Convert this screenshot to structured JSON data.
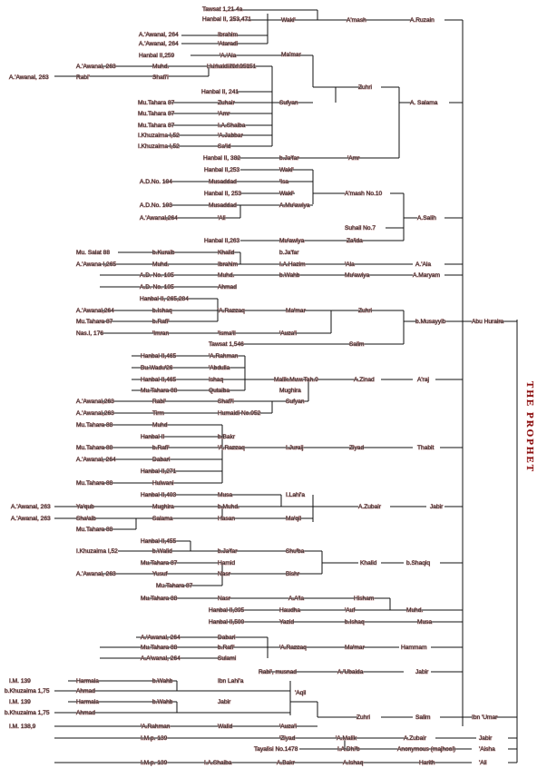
{
  "title": "THE PROPHET",
  "labels": {
    "r1": "Tawsat 1,21 4a",
    "r2": "Hanbal II, 253,471",
    "r3": "A.'Awanal, 264",
    "r4": "A.'Awanal, 264",
    "r5": "Hanbal II,259",
    "r6": "A.'Awanal, 263",
    "r7": "A.'Awanal, 263",
    "r8": "Hanbal II, 241",
    "r9": "Mu.Tahara 87",
    "r10": "Mu.Tahara 87",
    "r11": "Mu.Tahara 87",
    "r12": "I.Khuzaima I,52",
    "r13": "I.Khuzaima I,52",
    "r14": "Hanbal II, 382",
    "r15": "Hanbal II,253",
    "r16": "A.D.No. 104",
    "r17": "Hanbal II, 253",
    "r18": "A.D.No. 103",
    "r19": "A.'Awanal,264",
    "r20": "Hanbal II,263",
    "r21": "Mu. Salat 88",
    "r22": "A.'Awana I,265",
    "r23": "A.D. No. 105",
    "r24": "A.D. No. 105",
    "r25": "Hanbal II, 265,284",
    "r26": "A.'Awanal,264",
    "r27": "Mu.Tahara 87",
    "r28": "Nas.I, 176",
    "r29": "Tawsat 1,546",
    "r30": "Hanbal II,465",
    "r31": "Bu.Wadu'26",
    "r32": "Hanbal II,465",
    "r33": "Mu.Tahara 88",
    "r34": "A.'Awanal,263",
    "r35": "A.'Awanal,263",
    "r36": "Mu.Tahara 88",
    "r37": "Hanbal II",
    "r38": "Mu.Tahara 88",
    "r39": "A.'Awanal, 264",
    "r40": "Hanbal II,271",
    "r41": "Mu.Tahara 88",
    "r42": "Hanbal II,403",
    "r43": "A.'Awanal, 263",
    "r44": "A.'Awanal, 263",
    "r45": "Mu.Tahara 88",
    "r46": "Hanbal II,455",
    "r47": "I.Khuzaima I,52",
    "r48": "Mu.Tahara 87",
    "r49": "A.'Awanal, 263",
    "r50": "Mu.Tahara 87",
    "r51": "Mu.Tahara 88",
    "r52": "Hanbal II,395",
    "r53": "Hanbal II,500",
    "r54": "A.'Awanal, 264",
    "r55": "Mu.Tahara 88",
    "r56": "A.A'wanal, 264",
    "r57": "I.M. 139",
    "r58": "b.Khuzaima 1,75",
    "r59": "I.M. 139",
    "r60": "b.Khuzaima 1,75",
    "r61": "I.M. 138,9",
    "r62": "I.M.p. 139",
    "r63": "Tayalisi No.1478",
    "r64": "I.M.p. 139",
    "c1": "Waki'",
    "c2": "Ibrahim",
    "c3": "'Ataradi",
    "c4": "'A.'Ala",
    "c5": "Muhd.",
    "c6": "Rabi'",
    "c7": "Humaidi No.951",
    "c8": "Shafi'i",
    "c9": "Zuhair",
    "c10": "'Amr",
    "c11": "I.A.Shaiba",
    "c12": "'A.Jabbar",
    "c13": "Sa'id",
    "c14": "b.Ja'far",
    "c15": "Waki'",
    "c16": "Musaddad",
    "c17": "Waki'",
    "c18": "Musaddad",
    "c19": "'Ali",
    "c20": "Mu'awiya",
    "c21": "b.Kuraib",
    "c22": "Muhd.",
    "c23": "Muhd.",
    "c24": "Ahmad",
    "c25": "b.Ishaq",
    "c26": "b.Rafi'",
    "c27": "'Imran",
    "c28": "'A.Rahman",
    "c29": "'Abdulla",
    "c30": "Ishaq",
    "c31": "Qutaiba",
    "c32": "Rabi'",
    "c33": "Tirm",
    "c34": "Muhd",
    "c35": "b.Rafi'",
    "c36": "Dabari",
    "c37": "Hulwani",
    "c38": "Ya'qub",
    "c39": "Sha'aib",
    "c40": "b.Walid",
    "c41": "Yusuf",
    "c42": "Mughira",
    "c43": "Salama",
    "c44": "Dabari",
    "c45": "b.Rafi'",
    "c46": "Sulami",
    "c47": "Harmala",
    "c48": "Ahmad",
    "c49": "Harmala",
    "c50": "Ahmad",
    "c51": "'A.Rahman",
    "c52": "I.A.Shaiba",
    "d1": "Ma'mar",
    "d2": "Humaidi No.951",
    "d3": "Sufyan",
    "d4": "'Isa",
    "d5": "A.Mu'awiya",
    "d6": "Za'ida",
    "d7": "Mu'awiya",
    "d8": "Khalid",
    "d9": "Ibrahim",
    "d10": "b.Ja'far",
    "d11": "I.A.Hazim",
    "d12": "b.Wahb",
    "d13": "'A.Razzaq",
    "d14": "Ma'mar",
    "d15": "'Isma'il",
    "d16": "'Auza'i",
    "d17": "Malik.Muw.Tah.9",
    "d18": "Mughira",
    "d19": "Shafi'i",
    "d20": "Sufyan",
    "d21": "Humaidi No.952",
    "d22": "b.Bakr",
    "d23": "'A.Razzaq",
    "d24": "Musa",
    "d25": "b.Muhd.",
    "d26": "Hasan",
    "d27": "b.Ja'far",
    "d28": "Hamid",
    "d29": "Nasr",
    "d30": "Nasr",
    "d31": "Haudha",
    "d32": "Yazid",
    "d33": "'A.Razzaq",
    "d34": "b.Wahb",
    "d35": "b.Wahb",
    "d36": "Walid",
    "d37": "A.Bakr",
    "e1": "Ibn Lahi'a",
    "e2": "Jabir",
    "e3": "'Auza'i",
    "e4": "'Ziyad",
    "f1": "A'mash",
    "f2": "Zuhri",
    "f3": "'Amr",
    "f4": "A'mash No.10",
    "f5": "Suhail No.7",
    "f6": "'Ala",
    "f7": "Mu'awiya",
    "f8": "Zuhri",
    "f9": "Salim",
    "f10": "A.Zinad",
    "f11": "I.Juraij",
    "f12": "Ziyad",
    "f13": "I.Lahi'a",
    "f14": "Ma'qil",
    "f15": "A.Zubair",
    "f16": "Shu'ba",
    "f17": "Bishr",
    "f18": "A.A'la",
    "f19": "'Auf",
    "f20": "b.Ishaq",
    "f21": "Ma'mar",
    "f22": "Rabi', musnad",
    "f23": "A.'Ubaida",
    "f24": "'Aqil",
    "f25": "Zuhri",
    "f26": "'A.Malik",
    "f27": "I.A.Dhi'b",
    "f28": "A.Ishaq",
    "f29": "Hisham",
    "f30": "Khalid",
    "g1": "A.Ruzain",
    "g2": "A. Salama",
    "g3": "A.Salih",
    "g4": "A.'Ala",
    "g5": "A.Maryam",
    "g6": "b.Musayyib",
    "g7": "A'raj",
    "g8": "Thabit",
    "g9": "Jabir",
    "g10": "b.Shaqiq",
    "g11": "Muhd.",
    "g12": "Musa",
    "g13": "Hammam",
    "g14": "Jabir",
    "g15": "Salim",
    "g16": "A.Zubair",
    "g17": "Anonymous (majhool)",
    "g18": "Harith",
    "h1": "Abu Huraira",
    "h2": "Ibn 'Umar",
    "h3": "Jabir",
    "h4": "'Aisha",
    "h5": "'Ali"
  }
}
